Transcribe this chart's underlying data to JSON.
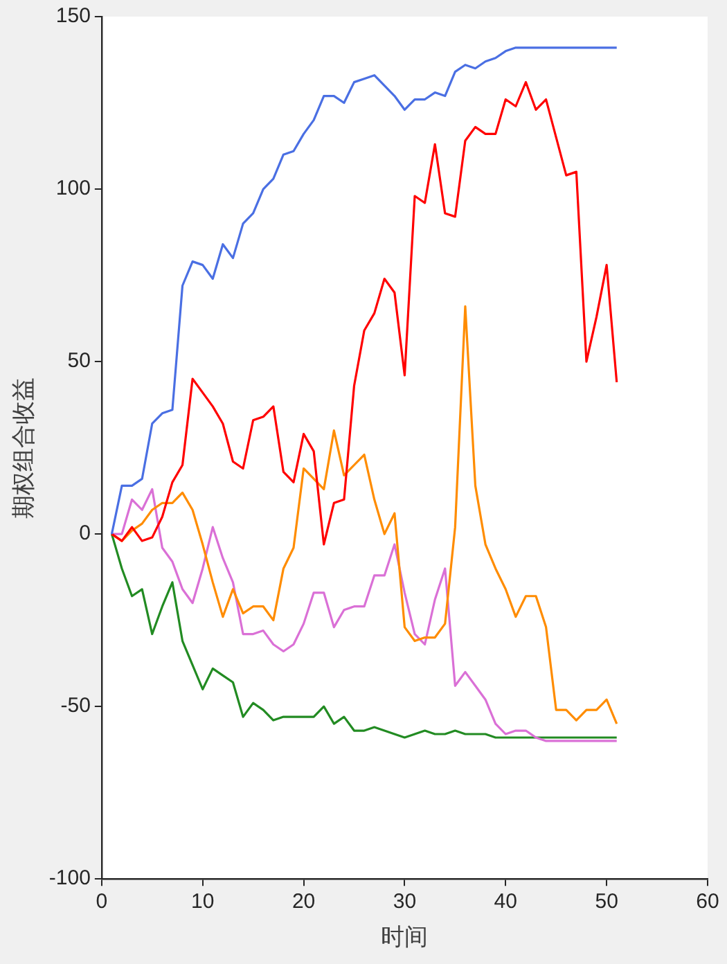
{
  "chart_data": {
    "type": "line",
    "xlabel": "时间",
    "ylabel": "期权组合收益",
    "x": [
      1,
      2,
      3,
      4,
      5,
      6,
      7,
      8,
      9,
      10,
      11,
      12,
      13,
      14,
      15,
      16,
      17,
      18,
      19,
      20,
      21,
      22,
      23,
      24,
      25,
      26,
      27,
      28,
      29,
      30,
      31,
      32,
      33,
      34,
      35,
      36,
      37,
      38,
      39,
      40,
      41,
      42,
      43,
      44,
      45,
      46,
      47,
      48,
      49,
      50,
      51
    ],
    "series": [
      {
        "color": "#4a6fe3",
        "values": [
          0,
          14,
          14,
          16,
          32,
          35,
          36,
          72,
          79,
          78,
          74,
          84,
          80,
          90,
          93,
          100,
          103,
          110,
          111,
          116,
          120,
          127,
          127,
          125,
          131,
          132,
          133,
          130,
          127,
          123,
          126,
          126,
          128,
          127,
          134,
          136,
          135,
          137,
          138,
          140,
          141,
          141,
          141,
          141,
          141,
          141,
          141,
          141,
          141,
          141,
          141
        ]
      },
      {
        "color": "#ff0000",
        "values": [
          0,
          -2,
          2,
          -2,
          -1,
          5,
          15,
          20,
          45,
          41,
          37,
          32,
          21,
          19,
          33,
          34,
          37,
          18,
          15,
          29,
          24,
          -3,
          9,
          10,
          43,
          59,
          64,
          74,
          70,
          46,
          98,
          96,
          113,
          93,
          92,
          114,
          118,
          116,
          116,
          126,
          124,
          131,
          123,
          126,
          115,
          104,
          105,
          50,
          63,
          78,
          44
        ]
      },
      {
        "color": "#ff8c00",
        "values": [
          0,
          -2,
          1,
          3,
          7,
          9,
          9,
          12,
          7,
          -3,
          -14,
          -24,
          -16,
          -23,
          -21,
          -21,
          -25,
          -10,
          -4,
          19,
          16,
          13,
          30,
          17,
          20,
          23,
          10,
          0,
          6,
          -27,
          -31,
          -30,
          -30,
          -26,
          2,
          66,
          14,
          -3,
          -10,
          -16,
          -24,
          -18,
          -18,
          -27,
          -51,
          -51,
          -54,
          -51,
          -51,
          -48,
          -55
        ]
      },
      {
        "color": "#da70d6",
        "values": [
          0,
          0,
          10,
          7,
          13,
          -4,
          -8,
          -16,
          -20,
          -10,
          2,
          -7,
          -14,
          -29,
          -29,
          -28,
          -32,
          -34,
          -32,
          -26,
          -17,
          -17,
          -27,
          -22,
          -21,
          -21,
          -12,
          -12,
          -3,
          -17,
          -29,
          -32,
          -19,
          -10,
          -44,
          -40,
          -44,
          -48,
          -55,
          -58,
          -57,
          -57,
          -59,
          -60,
          -60,
          -60,
          -60,
          -60,
          -60,
          -60,
          -60
        ]
      },
      {
        "color": "#228b22",
        "values": [
          0,
          -10,
          -18,
          -16,
          -29,
          -21,
          -14,
          -31,
          -38,
          -45,
          -39,
          -41,
          -43,
          -53,
          -49,
          -51,
          -54,
          -53,
          -53,
          -53,
          -53,
          -50,
          -55,
          -53,
          -57,
          -57,
          -56,
          -57,
          -58,
          -59,
          -58,
          -57,
          -58,
          -58,
          -57,
          -58,
          -58,
          -58,
          -59,
          -59,
          -59,
          -59,
          -59,
          -59,
          -59,
          -59,
          -59,
          -59,
          -59,
          -59,
          -59
        ]
      }
    ],
    "xlim": [
      0,
      60
    ],
    "xticks": [
      0,
      10,
      20,
      30,
      40,
      50,
      60
    ],
    "ylim": [
      -100,
      150
    ],
    "yticks": [
      -100,
      -50,
      0,
      50,
      100,
      150
    ],
    "grid": false,
    "legend": false,
    "marker": "none",
    "line_style": "solid"
  }
}
